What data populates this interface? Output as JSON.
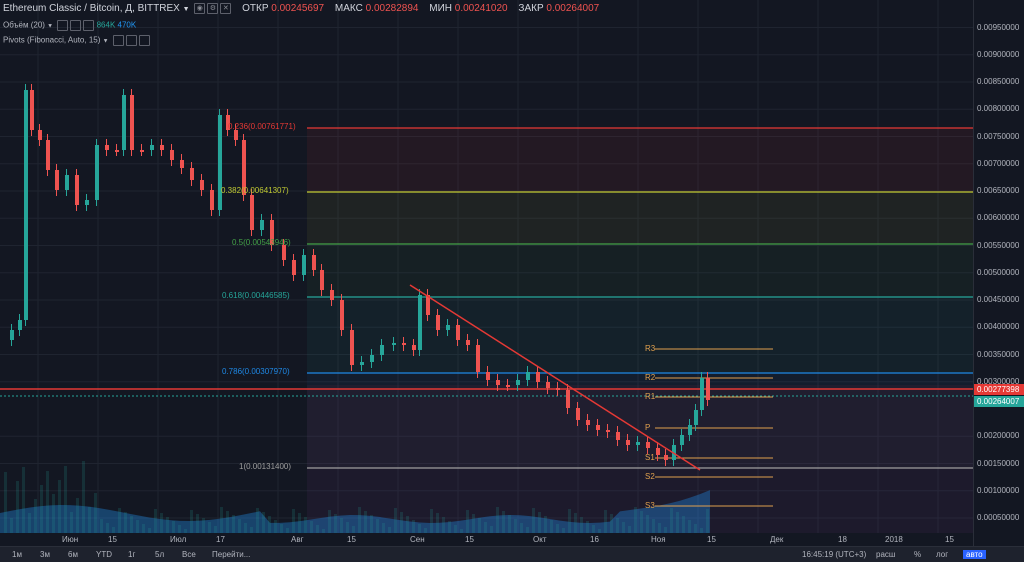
{
  "legend": {
    "symbol": "Ethereum Classic / Bitcoin, Д, BITTREX",
    "open_label": "ОТКР",
    "open_value": "0.00245697",
    "high_label": "МАКС",
    "high_value": "0.00282894",
    "low_label": "МИН",
    "low_value": "0.00241020",
    "close_label": "ЗАКР",
    "close_value": "0.00264007"
  },
  "volume_legend": {
    "label": "Объём (20)",
    "v1": "864K",
    "v2": "470K"
  },
  "pivots_legend": {
    "label": "Pivots (Fibonacci, Auto, 15)"
  },
  "y_axis": {
    "labels": [
      "0.00950000",
      "0.00900000",
      "0.00850000",
      "0.00800000",
      "0.00750000",
      "0.00700000",
      "0.00650000",
      "0.00600000",
      "0.00550000",
      "0.00500000",
      "0.00450000",
      "0.00400000",
      "0.00350000",
      "0.00300000",
      "0.00200000",
      "0.00150000",
      "0.00100000",
      "0.00050000"
    ],
    "badge_red": "0.00277398",
    "badge_green": "0.00264007"
  },
  "x_axis": {
    "labels": [
      "Июн",
      "15",
      "Июл",
      "17",
      "Авг",
      "15",
      "Сен",
      "15",
      "Окт",
      "16",
      "Ноя",
      "15",
      "Дек",
      "18",
      "2018",
      "15"
    ]
  },
  "fib_levels": [
    {
      "label": "0.236(0.00761771)",
      "color": "#e53935"
    },
    {
      "label": "0.382(0.00641307)",
      "color": "#c0ca33"
    },
    {
      "label": "0.5(0.00543946)",
      "color": "#43a047"
    },
    {
      "label": "0.618(0.00446585)",
      "color": "#26a69a"
    },
    {
      "label": "0.786(0.00307970)",
      "color": "#1e88e5"
    },
    {
      "label": "1(0.00131400)",
      "color": "#9e9e9e"
    }
  ],
  "pivots": [
    "R3",
    "R2",
    "R1",
    "P",
    "S1",
    "S2",
    "S3"
  ],
  "toolbar": {
    "ranges": [
      "1м",
      "3м",
      "6м",
      "YTD",
      "1г",
      "5л",
      "Все"
    ],
    "goto": "Перейти...",
    "time": "16:45:19 (UTC+3)",
    "right": [
      "расш",
      "%",
      "лог",
      "авто"
    ]
  },
  "colors": {
    "up": "#26a69a",
    "down": "#ef5350",
    "bg": "#131722"
  }
}
